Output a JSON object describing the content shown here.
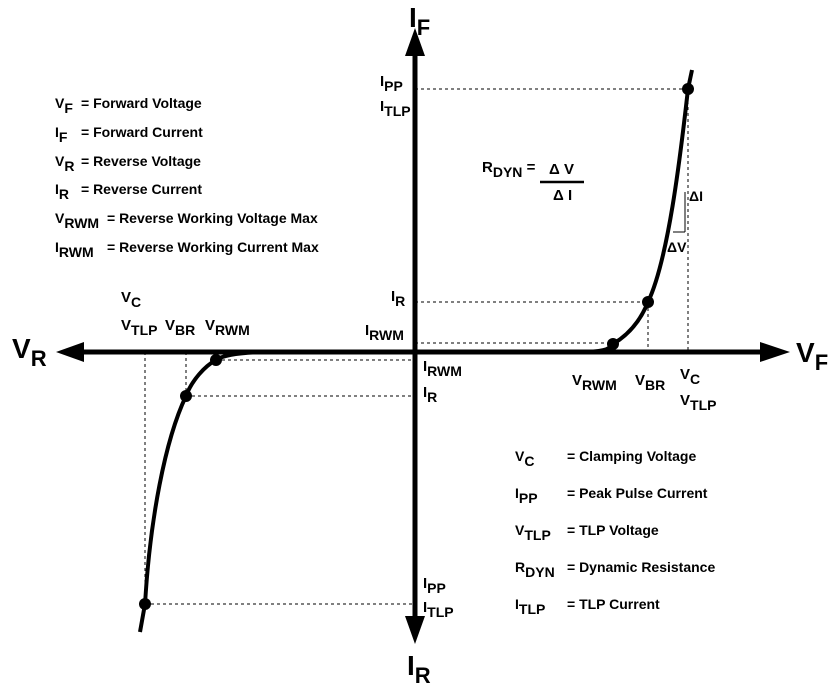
{
  "axes": {
    "if": {
      "base": "I",
      "sub": "F"
    },
    "ir": {
      "base": "I",
      "sub": "R"
    },
    "vf": {
      "base": "V",
      "sub": "F"
    },
    "vr": {
      "base": "V",
      "sub": "R"
    }
  },
  "labels": {
    "ipp_top": {
      "base": "I",
      "sub": "PP"
    },
    "itlp_top": {
      "base": "I",
      "sub": "TLP"
    },
    "ir_pos": {
      "base": "I",
      "sub": "R"
    },
    "irwm_pos": {
      "base": "I",
      "sub": "RWM"
    },
    "irwm_neg": {
      "base": "I",
      "sub": "RWM"
    },
    "ir_neg": {
      "base": "I",
      "sub": "R"
    },
    "ipp_bot": {
      "base": "I",
      "sub": "PP"
    },
    "itlp_bot": {
      "base": "I",
      "sub": "TLP"
    },
    "vc_left": {
      "base": "V",
      "sub": "C"
    },
    "vtlp_left": {
      "base": "V",
      "sub": "TLP"
    },
    "vbr_left": {
      "base": "V",
      "sub": "BR"
    },
    "vrwm_left": {
      "base": "V",
      "sub": "RWM"
    },
    "vrwm_right": {
      "base": "V",
      "sub": "RWM"
    },
    "vbr_right": {
      "base": "V",
      "sub": "BR"
    },
    "vc_right": {
      "base": "V",
      "sub": "C"
    },
    "vtlp_right": {
      "base": "V",
      "sub": "TLP"
    },
    "delta_i": "ΔI",
    "delta_v": "ΔV"
  },
  "rdyn_formula": {
    "base": "R",
    "sub": "DYN",
    "eq": "=",
    "numerator": "Δ V",
    "denominator": "Δ I"
  },
  "legend_left": [
    {
      "base": "V",
      "sub": "F",
      "desc": "= Forward Voltage"
    },
    {
      "base": "I",
      "sub": "F",
      "desc": "=  Forward Current"
    },
    {
      "base": "V",
      "sub": "R",
      "desc": "= Reverse Voltage"
    },
    {
      "base": "I",
      "sub": "R",
      "desc": "=  Reverse Current"
    },
    {
      "base": "V",
      "sub": "RWM",
      "desc": "=  Reverse Working Voltage Max"
    },
    {
      "base": "I",
      "sub": "RWM",
      "desc": "=  Reverse Working Current Max"
    }
  ],
  "legend_right": [
    {
      "base": "V",
      "sub": "C",
      "desc": "=  Clamping Voltage"
    },
    {
      "base": "I",
      "sub": "PP",
      "desc": "= Peak Pulse Current"
    },
    {
      "base": "V",
      "sub": "TLP",
      "desc": "= TLP Voltage"
    },
    {
      "base": "R",
      "sub": "DYN",
      "desc": "= Dynamic Resistance"
    },
    {
      "base": "I",
      "sub": "TLP",
      "desc": "= TLP Current"
    }
  ]
}
